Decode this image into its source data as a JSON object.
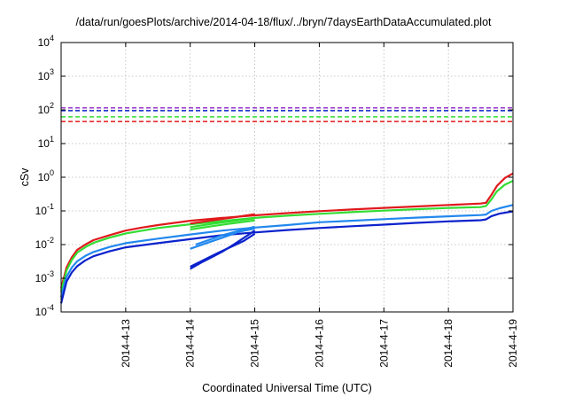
{
  "chart_data": {
    "type": "line",
    "title": "/data/run/goesPlots/archive/2014-04-18/flux/../bryn/7daysEarthDataAccumulated.plot",
    "xlabel": "Coordinated Universal Time (UTC)",
    "ylabel": "cSv",
    "y_scale": "log",
    "ylim": [
      0.0001,
      10000
    ],
    "y_ticks": [
      {
        "base": "10",
        "exp": "-4",
        "value": 0.0001
      },
      {
        "base": "10",
        "exp": "-3",
        "value": 0.001
      },
      {
        "base": "10",
        "exp": "-2",
        "value": 0.01
      },
      {
        "base": "10",
        "exp": "-1",
        "value": 0.1
      },
      {
        "base": "10",
        "exp": "0",
        "value": 1
      },
      {
        "base": "10",
        "exp": "1",
        "value": 10
      },
      {
        "base": "10",
        "exp": "2",
        "value": 100
      },
      {
        "base": "10",
        "exp": "3",
        "value": 1000
      },
      {
        "base": "10",
        "exp": "4",
        "value": 10000
      }
    ],
    "xlim": [
      "2014-04-12 00:00",
      "2014-04-19 00:00"
    ],
    "x_ticks": [
      "2014-4-13",
      "2014-4-14",
      "2014-4-15",
      "2014-4-16",
      "2014-4-17",
      "2014-4-18",
      "2014-4-19"
    ],
    "grid": true,
    "colors": {
      "red": "#e0191c",
      "green": "#33dd33",
      "light_blue": "#2288ee",
      "dark_blue": "#0b22cc",
      "purple": "#9933cc",
      "axis": "#000000",
      "grid": "#b8b8b8"
    },
    "reference_lines": [
      {
        "color": "purple",
        "y": 115
      },
      {
        "color": "dark_blue",
        "y": 95
      },
      {
        "color": "green",
        "y": 62
      },
      {
        "color": "red",
        "y": 45
      }
    ],
    "series": [
      {
        "color": "red",
        "points": [
          [
            "2014-04-12 00:00",
            0.0005
          ],
          [
            "2014-04-12 02:00",
            0.0021
          ],
          [
            "2014-04-12 04:00",
            0.0042
          ],
          [
            "2014-04-12 06:00",
            0.007
          ],
          [
            "2014-04-12 09:00",
            0.01
          ],
          [
            "2014-04-12 12:00",
            0.0135
          ],
          [
            "2014-04-12 18:00",
            0.019
          ],
          [
            "2014-04-13 00:00",
            0.026
          ],
          [
            "2014-04-13 06:00",
            0.032
          ],
          [
            "2014-04-13 12:00",
            0.038
          ],
          [
            "2014-04-14 00:00",
            0.051
          ],
          [
            "2014-04-14 12:00",
            0.062
          ],
          [
            "2014-04-15 00:00",
            0.074
          ],
          [
            "2014-04-15 12:00",
            0.086
          ],
          [
            "2014-04-16 00:00",
            0.098
          ],
          [
            "2014-04-16 12:00",
            0.11
          ],
          [
            "2014-04-17 00:00",
            0.123
          ],
          [
            "2014-04-17 12:00",
            0.135
          ],
          [
            "2014-04-18 00:00",
            0.15
          ],
          [
            "2014-04-18 12:00",
            0.165
          ],
          [
            "2014-04-18 14:00",
            0.175
          ],
          [
            "2014-04-18 16:00",
            0.3
          ],
          [
            "2014-04-18 18:00",
            0.55
          ],
          [
            "2014-04-18 21:00",
            0.95
          ],
          [
            "2014-04-19 00:00",
            1.3
          ]
        ]
      },
      {
        "color": "green",
        "points": [
          [
            "2014-04-12 00:00",
            0.0004
          ],
          [
            "2014-04-12 02:00",
            0.0017
          ],
          [
            "2014-04-12 04:00",
            0.0035
          ],
          [
            "2014-04-12 06:00",
            0.0058
          ],
          [
            "2014-04-12 09:00",
            0.0084
          ],
          [
            "2014-04-12 12:00",
            0.0112
          ],
          [
            "2014-04-12 18:00",
            0.016
          ],
          [
            "2014-04-13 00:00",
            0.0215
          ],
          [
            "2014-04-13 12:00",
            0.031
          ],
          [
            "2014-04-14 00:00",
            0.04
          ],
          [
            "2014-04-14 12:00",
            0.05
          ],
          [
            "2014-04-15 00:00",
            0.062
          ],
          [
            "2014-04-15 12:00",
            0.072
          ],
          [
            "2014-04-16 00:00",
            0.082
          ],
          [
            "2014-04-16 12:00",
            0.092
          ],
          [
            "2014-04-17 00:00",
            0.102
          ],
          [
            "2014-04-17 12:00",
            0.112
          ],
          [
            "2014-04-18 00:00",
            0.122
          ],
          [
            "2014-04-18 12:00",
            0.13
          ],
          [
            "2014-04-18 14:00",
            0.14
          ],
          [
            "2014-04-18 16:00",
            0.22
          ],
          [
            "2014-04-18 18:00",
            0.38
          ],
          [
            "2014-04-18 21:00",
            0.6
          ],
          [
            "2014-04-19 00:00",
            0.78
          ]
        ]
      },
      {
        "color": "light_blue",
        "points": [
          [
            "2014-04-12 00:00",
            0.00028
          ],
          [
            "2014-04-12 02:00",
            0.0011
          ],
          [
            "2014-04-12 04:00",
            0.0021
          ],
          [
            "2014-04-12 06:00",
            0.0032
          ],
          [
            "2014-04-12 09:00",
            0.0046
          ],
          [
            "2014-04-12 12:00",
            0.006
          ],
          [
            "2014-04-12 18:00",
            0.0085
          ],
          [
            "2014-04-13 00:00",
            0.011
          ],
          [
            "2014-04-13 12:00",
            0.015
          ],
          [
            "2014-04-14 00:00",
            0.02
          ],
          [
            "2014-04-14 12:00",
            0.026
          ],
          [
            "2014-04-15 00:00",
            0.032
          ],
          [
            "2014-04-15 12:00",
            0.038
          ],
          [
            "2014-04-16 00:00",
            0.046
          ],
          [
            "2014-04-16 12:00",
            0.051
          ],
          [
            "2014-04-17 00:00",
            0.057
          ],
          [
            "2014-04-17 12:00",
            0.063
          ],
          [
            "2014-04-18 00:00",
            0.069
          ],
          [
            "2014-04-18 12:00",
            0.075
          ],
          [
            "2014-04-18 14:00",
            0.078
          ],
          [
            "2014-04-18 16:00",
            0.1
          ],
          [
            "2014-04-18 19:00",
            0.12
          ],
          [
            "2014-04-19 00:00",
            0.15
          ]
        ]
      },
      {
        "color": "dark_blue",
        "points": [
          [
            "2014-04-12 00:00",
            0.00018
          ],
          [
            "2014-04-12 02:00",
            0.0008
          ],
          [
            "2014-04-12 04:00",
            0.0015
          ],
          [
            "2014-04-12 06:00",
            0.0023
          ],
          [
            "2014-04-12 09:00",
            0.0034
          ],
          [
            "2014-04-12 12:00",
            0.0045
          ],
          [
            "2014-04-12 18:00",
            0.0063
          ],
          [
            "2014-04-13 00:00",
            0.0083
          ],
          [
            "2014-04-13 12:00",
            0.011
          ],
          [
            "2014-04-14 00:00",
            0.0145
          ],
          [
            "2014-04-14 12:00",
            0.019
          ],
          [
            "2014-04-15 00:00",
            0.023
          ],
          [
            "2014-04-15 12:00",
            0.027
          ],
          [
            "2014-04-16 00:00",
            0.031
          ],
          [
            "2014-04-16 12:00",
            0.035
          ],
          [
            "2014-04-17 00:00",
            0.039
          ],
          [
            "2014-04-17 12:00",
            0.044
          ],
          [
            "2014-04-18 00:00",
            0.049
          ],
          [
            "2014-04-18 12:00",
            0.053
          ],
          [
            "2014-04-18 14:00",
            0.056
          ],
          [
            "2014-04-18 16:00",
            0.07
          ],
          [
            "2014-04-18 19:00",
            0.083
          ],
          [
            "2014-04-19 00:00",
            0.097
          ]
        ]
      },
      {
        "color": "red",
        "points": [
          [
            "2014-04-14 00:00",
            0.042
          ],
          [
            "2014-04-14 08:00",
            0.052
          ],
          [
            "2014-04-14 16:00",
            0.064
          ],
          [
            "2014-04-15 00:00",
            0.08
          ]
        ]
      },
      {
        "color": "green",
        "points": [
          [
            "2014-04-14 00:00",
            0.033
          ],
          [
            "2014-04-14 08:00",
            0.041
          ],
          [
            "2014-04-14 16:00",
            0.05
          ],
          [
            "2014-04-15 00:00",
            0.06
          ]
        ]
      },
      {
        "color": "green",
        "points": [
          [
            "2014-04-14 00:00",
            0.028
          ],
          [
            "2014-04-14 08:00",
            0.035
          ],
          [
            "2014-04-14 16:00",
            0.043
          ],
          [
            "2014-04-15 00:00",
            0.052
          ]
        ]
      },
      {
        "color": "light_blue",
        "points": [
          [
            "2014-04-14 00:00",
            0.0075
          ],
          [
            "2014-04-14 06:00",
            0.011
          ],
          [
            "2014-04-14 12:00",
            0.016
          ],
          [
            "2014-04-14 18:00",
            0.024
          ],
          [
            "2014-04-15 00:00",
            0.03
          ]
        ]
      },
      {
        "color": "light_blue",
        "points": [
          [
            "2014-04-14 02:00",
            0.01
          ],
          [
            "2014-04-14 12:00",
            0.019
          ],
          [
            "2014-04-15 00:00",
            0.034
          ]
        ]
      },
      {
        "color": "dark_blue",
        "points": [
          [
            "2014-04-14 00:00",
            0.0019
          ],
          [
            "2014-04-14 04:00",
            0.0029
          ],
          [
            "2014-04-14 08:00",
            0.0042
          ],
          [
            "2014-04-14 12:00",
            0.0062
          ],
          [
            "2014-04-14 16:00",
            0.0098
          ],
          [
            "2014-04-15 00:00",
            0.026
          ]
        ]
      },
      {
        "color": "dark_blue",
        "points": [
          [
            "2014-04-14 00:00",
            0.0022
          ],
          [
            "2014-04-14 10:00",
            0.0055
          ],
          [
            "2014-04-14 20:00",
            0.013
          ],
          [
            "2014-04-15 00:00",
            0.021
          ]
        ]
      }
    ]
  }
}
